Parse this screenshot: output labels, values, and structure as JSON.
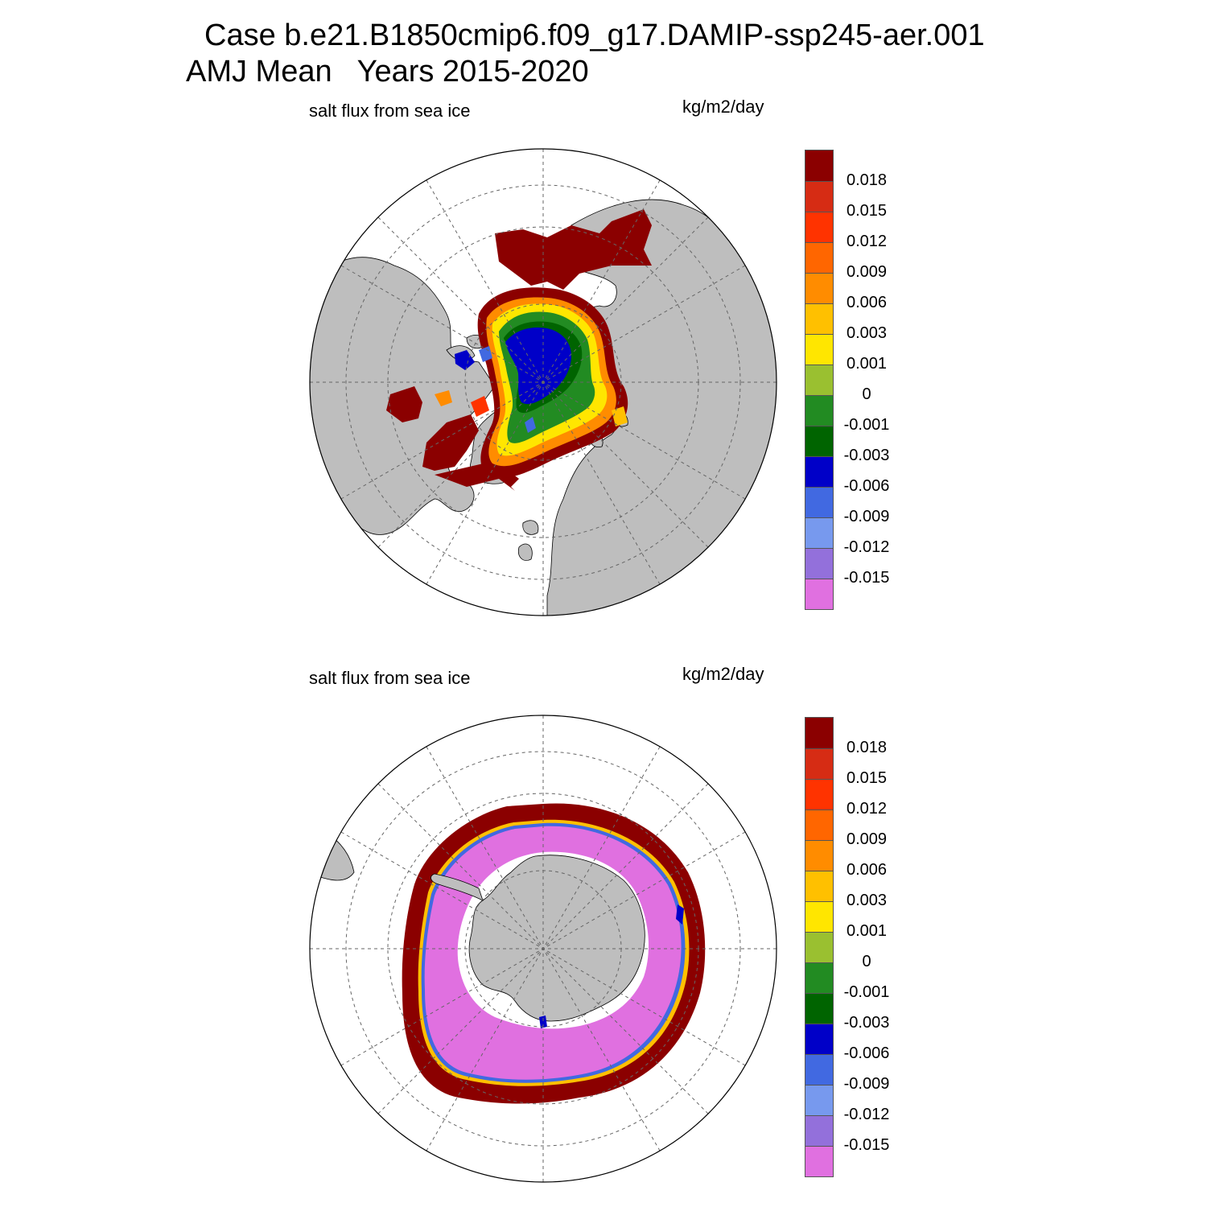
{
  "title": {
    "line1": "Case b.e21.B1850cmip6.f09_g17.DAMIP-ssp245-aer.001",
    "line2": "AMJ Mean   Years 2015-2020"
  },
  "panels": [
    {
      "id": "north",
      "hemisphere": "Northern Hemisphere polar stereographic",
      "variable_label": "salt flux from sea ice",
      "units_label": "kg/m2/day"
    },
    {
      "id": "south",
      "hemisphere": "Southern Hemisphere polar stereographic",
      "variable_label": "salt flux from sea ice",
      "units_label": "kg/m2/day"
    }
  ],
  "colorbar": {
    "colors": [
      "#8b0000",
      "#d62c14",
      "#ff3300",
      "#ff6600",
      "#ff8c00",
      "#ffc000",
      "#ffe600",
      "#9ac030",
      "#228b22",
      "#006400",
      "#0000c8",
      "#4169e1",
      "#7799ee",
      "#9370db",
      "#e070e0"
    ],
    "labels": [
      "0.018",
      "0.015",
      "0.012",
      "0.009",
      "0.006",
      "0.003",
      "0.001",
      "0",
      "-0.001",
      "-0.003",
      "-0.006",
      "-0.009",
      "-0.012",
      "-0.015"
    ]
  },
  "map_colors": {
    "land": "#bebebe",
    "ocean": "#ffffff",
    "grid": "#666666"
  }
}
